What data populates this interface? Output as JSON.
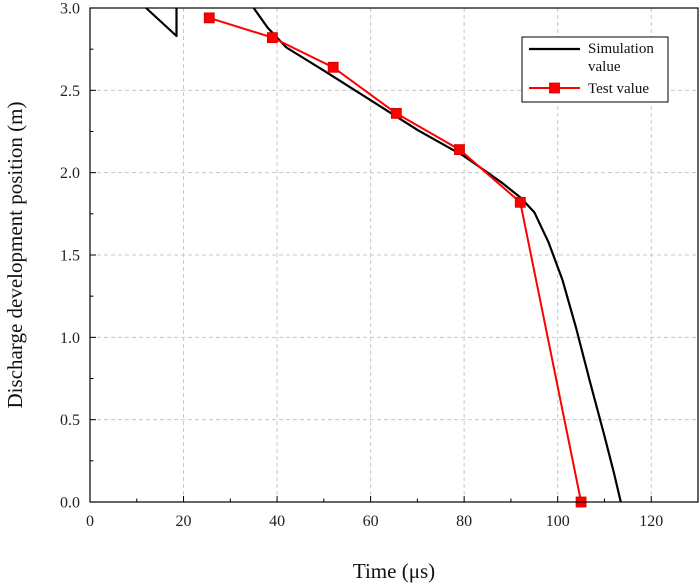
{
  "chart_data": {
    "type": "line",
    "xlabel": "Time (μs)",
    "ylabel": "Discharge development position (m)",
    "xlim": [
      0,
      130
    ],
    "ylim": [
      0,
      3.0
    ],
    "x_ticks": [
      "0",
      "20",
      "40",
      "60",
      "80",
      "100",
      "120"
    ],
    "y_ticks": [
      "0.0",
      "0.5",
      "1.0",
      "1.5",
      "2.0",
      "2.5",
      "3.0"
    ],
    "grid": true,
    "legend_position": "top-right",
    "legend": [
      "Simulation\nvalue",
      "Test value"
    ],
    "series": [
      {
        "name": "Simulation value",
        "color": "#000000",
        "marker": "none",
        "segments": [
          [
            [
              12,
              3.0
            ],
            [
              18.5,
              2.83
            ],
            [
              18.5,
              3.0
            ]
          ],
          [
            [
              35,
              3.0
            ],
            [
              38,
              2.88
            ],
            [
              42,
              2.76
            ],
            [
              50,
              2.62
            ],
            [
              60,
              2.44
            ],
            [
              70,
              2.26
            ],
            [
              80,
              2.1
            ],
            [
              88,
              1.94
            ],
            [
              92,
              1.85
            ],
            [
              95,
              1.76
            ],
            [
              98,
              1.58
            ],
            [
              101,
              1.35
            ],
            [
              104,
              1.05
            ],
            [
              107,
              0.72
            ],
            [
              110,
              0.4
            ],
            [
              112,
              0.18
            ],
            [
              113.5,
              0.0
            ]
          ]
        ]
      },
      {
        "name": "Test value",
        "color": "#ff0000",
        "marker": "square",
        "points": [
          [
            25.5,
            2.94
          ],
          [
            39,
            2.82
          ],
          [
            52,
            2.64
          ],
          [
            65.5,
            2.36
          ],
          [
            79,
            2.14
          ],
          [
            92,
            1.82
          ],
          [
            105,
            0.0
          ]
        ]
      }
    ]
  }
}
